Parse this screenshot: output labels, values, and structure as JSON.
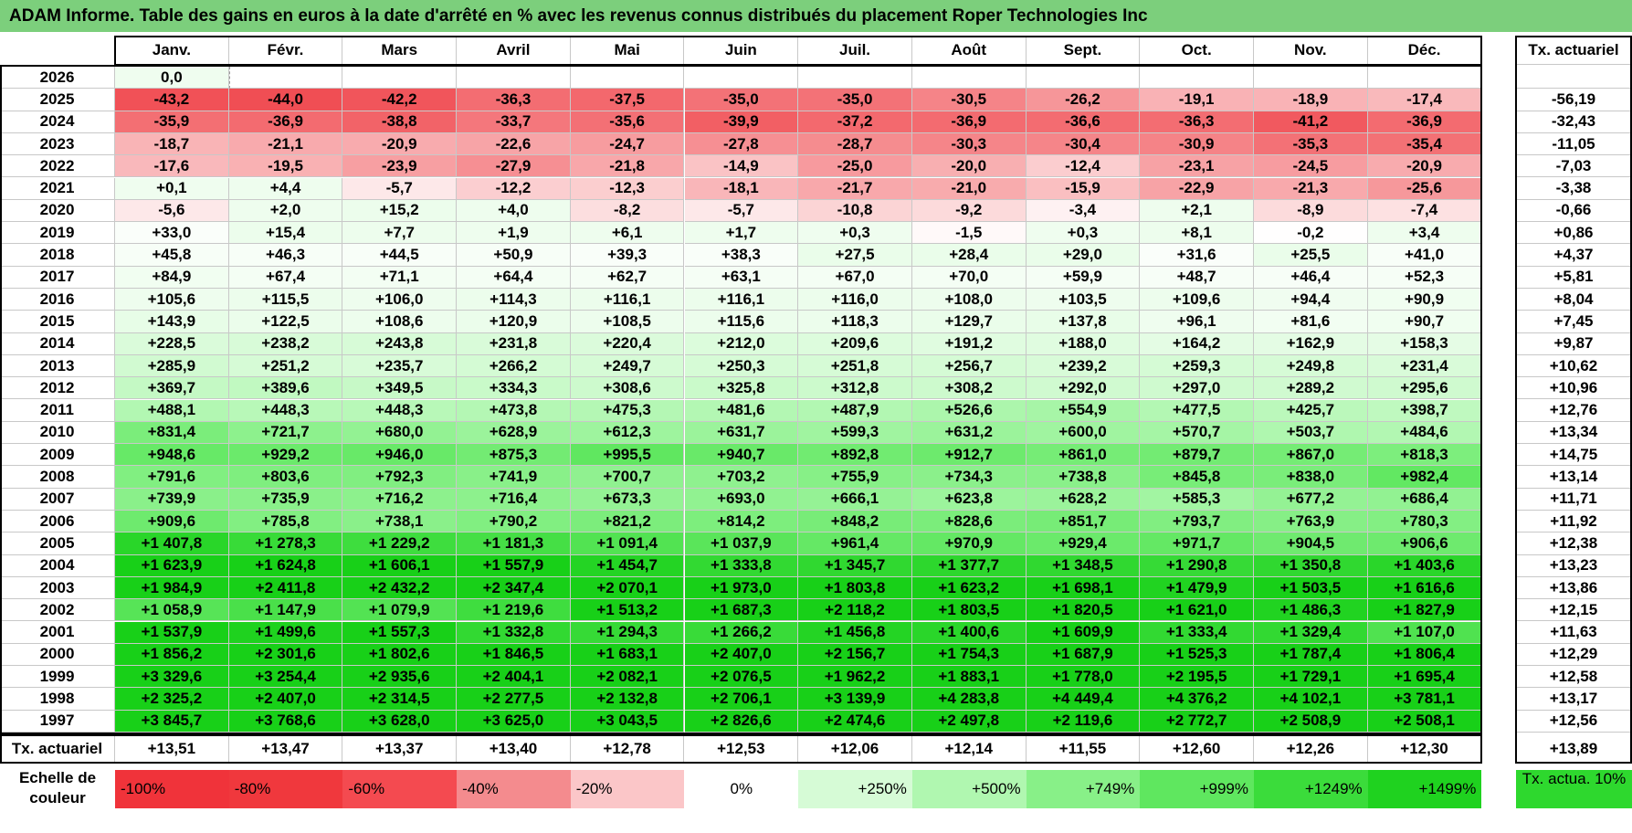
{
  "title": "ADAM Informe. Table des gains en euros à la date d'arrêté en % avec les revenus connus distribués du placement Roper Technologies Inc",
  "chart_data": {
    "type": "table",
    "columns": [
      "Janv.",
      "Févr.",
      "Mars",
      "Avril",
      "Mai",
      "Juin",
      "Juil.",
      "Août",
      "Sept.",
      "Oct.",
      "Nov.",
      "Déc."
    ],
    "rate_header": "Tx. actuariel",
    "rows": [
      {
        "year": "2026",
        "values": [
          "0,0",
          "",
          "",
          "",
          "",
          "",
          "",
          "",
          "",
          "",
          "",
          ""
        ],
        "rate": ""
      },
      {
        "year": "2025",
        "values": [
          "-43,2",
          "-44,0",
          "-42,2",
          "-36,3",
          "-37,5",
          "-35,0",
          "-35,0",
          "-30,5",
          "-26,2",
          "-19,1",
          "-18,9",
          "-17,4"
        ],
        "rate": "-56,19"
      },
      {
        "year": "2024",
        "values": [
          "-35,9",
          "-36,9",
          "-38,8",
          "-33,7",
          "-35,6",
          "-39,9",
          "-37,2",
          "-36,9",
          "-36,6",
          "-36,3",
          "-41,2",
          "-36,9"
        ],
        "rate": "-32,43"
      },
      {
        "year": "2023",
        "values": [
          "-18,7",
          "-21,1",
          "-20,9",
          "-22,6",
          "-24,7",
          "-27,8",
          "-28,7",
          "-30,3",
          "-30,4",
          "-30,9",
          "-35,3",
          "-35,4"
        ],
        "rate": "-11,05"
      },
      {
        "year": "2022",
        "values": [
          "-17,6",
          "-19,5",
          "-23,9",
          "-27,9",
          "-21,8",
          "-14,9",
          "-25,0",
          "-20,0",
          "-12,4",
          "-23,1",
          "-24,5",
          "-20,9"
        ],
        "rate": "-7,03"
      },
      {
        "year": "2021",
        "values": [
          "+0,1",
          "+4,4",
          "-5,7",
          "-12,2",
          "-12,3",
          "-18,1",
          "-21,7",
          "-21,0",
          "-15,9",
          "-22,9",
          "-21,3",
          "-25,6"
        ],
        "rate": "-3,38"
      },
      {
        "year": "2020",
        "values": [
          "-5,6",
          "+2,0",
          "+15,2",
          "+4,0",
          "-8,2",
          "-5,7",
          "-10,8",
          "-9,2",
          "-3,4",
          "+2,1",
          "-8,9",
          "-7,4"
        ],
        "rate": "-0,66"
      },
      {
        "year": "2019",
        "values": [
          "+33,0",
          "+15,4",
          "+7,7",
          "+1,9",
          "+6,1",
          "+1,7",
          "+0,3",
          "-1,5",
          "+0,3",
          "+8,1",
          "-0,2",
          "+3,4"
        ],
        "rate": "+0,86"
      },
      {
        "year": "2018",
        "values": [
          "+45,8",
          "+46,3",
          "+44,5",
          "+50,9",
          "+39,3",
          "+38,3",
          "+27,5",
          "+28,4",
          "+29,0",
          "+31,6",
          "+25,5",
          "+41,0"
        ],
        "rate": "+4,37"
      },
      {
        "year": "2017",
        "values": [
          "+84,9",
          "+67,4",
          "+71,1",
          "+64,4",
          "+62,7",
          "+63,1",
          "+67,0",
          "+70,0",
          "+59,9",
          "+48,7",
          "+46,4",
          "+52,3"
        ],
        "rate": "+5,81"
      },
      {
        "year": "2016",
        "values": [
          "+105,6",
          "+115,5",
          "+106,0",
          "+114,3",
          "+116,1",
          "+116,1",
          "+116,0",
          "+108,0",
          "+103,5",
          "+109,6",
          "+94,4",
          "+90,9"
        ],
        "rate": "+8,04"
      },
      {
        "year": "2015",
        "values": [
          "+143,9",
          "+122,5",
          "+108,6",
          "+120,9",
          "+108,5",
          "+115,6",
          "+118,3",
          "+129,7",
          "+137,8",
          "+96,1",
          "+81,6",
          "+90,7"
        ],
        "rate": "+7,45"
      },
      {
        "year": "2014",
        "values": [
          "+228,5",
          "+238,2",
          "+243,8",
          "+231,8",
          "+220,4",
          "+212,0",
          "+209,6",
          "+191,2",
          "+188,0",
          "+164,2",
          "+162,9",
          "+158,3"
        ],
        "rate": "+9,87"
      },
      {
        "year": "2013",
        "values": [
          "+285,9",
          "+251,2",
          "+235,7",
          "+266,2",
          "+249,7",
          "+250,3",
          "+251,8",
          "+256,7",
          "+239,2",
          "+259,3",
          "+249,8",
          "+231,4"
        ],
        "rate": "+10,62"
      },
      {
        "year": "2012",
        "values": [
          "+369,7",
          "+389,6",
          "+349,5",
          "+334,3",
          "+308,6",
          "+325,8",
          "+312,8",
          "+308,2",
          "+292,0",
          "+297,0",
          "+289,2",
          "+295,6"
        ],
        "rate": "+10,96"
      },
      {
        "year": "2011",
        "values": [
          "+488,1",
          "+448,3",
          "+448,3",
          "+473,8",
          "+475,3",
          "+481,6",
          "+487,9",
          "+526,6",
          "+554,9",
          "+477,5",
          "+425,7",
          "+398,7"
        ],
        "rate": "+12,76"
      },
      {
        "year": "2010",
        "values": [
          "+831,4",
          "+721,7",
          "+680,0",
          "+628,9",
          "+612,3",
          "+631,7",
          "+599,3",
          "+631,2",
          "+600,0",
          "+570,7",
          "+503,7",
          "+484,6"
        ],
        "rate": "+13,34"
      },
      {
        "year": "2009",
        "values": [
          "+948,6",
          "+929,2",
          "+946,0",
          "+875,3",
          "+995,5",
          "+940,7",
          "+892,8",
          "+912,7",
          "+861,0",
          "+879,7",
          "+867,0",
          "+818,3"
        ],
        "rate": "+14,75"
      },
      {
        "year": "2008",
        "values": [
          "+791,6",
          "+803,6",
          "+792,3",
          "+741,9",
          "+700,7",
          "+703,2",
          "+755,9",
          "+734,3",
          "+738,8",
          "+845,8",
          "+838,0",
          "+982,4"
        ],
        "rate": "+13,14"
      },
      {
        "year": "2007",
        "values": [
          "+739,9",
          "+735,9",
          "+716,2",
          "+716,4",
          "+673,3",
          "+693,0",
          "+666,1",
          "+623,8",
          "+628,2",
          "+585,3",
          "+677,2",
          "+686,4"
        ],
        "rate": "+11,71"
      },
      {
        "year": "2006",
        "values": [
          "+909,6",
          "+785,8",
          "+738,1",
          "+790,2",
          "+821,2",
          "+814,2",
          "+848,2",
          "+828,6",
          "+851,7",
          "+793,7",
          "+763,9",
          "+780,3"
        ],
        "rate": "+11,92"
      },
      {
        "year": "2005",
        "values": [
          "+1 407,8",
          "+1 278,3",
          "+1 229,2",
          "+1 181,3",
          "+1 091,4",
          "+1 037,9",
          "+961,4",
          "+970,9",
          "+929,4",
          "+971,7",
          "+904,5",
          "+906,6"
        ],
        "rate": "+12,38"
      },
      {
        "year": "2004",
        "values": [
          "+1 623,9",
          "+1 624,8",
          "+1 606,1",
          "+1 557,9",
          "+1 454,7",
          "+1 333,8",
          "+1 345,7",
          "+1 377,7",
          "+1 348,5",
          "+1 290,8",
          "+1 350,8",
          "+1 403,6"
        ],
        "rate": "+13,23"
      },
      {
        "year": "2003",
        "values": [
          "+1 984,9",
          "+2 411,8",
          "+2 432,2",
          "+2 347,4",
          "+2 070,1",
          "+1 973,0",
          "+1 803,8",
          "+1 623,2",
          "+1 698,1",
          "+1 479,9",
          "+1 503,5",
          "+1 616,6"
        ],
        "rate": "+13,86"
      },
      {
        "year": "2002",
        "values": [
          "+1 058,9",
          "+1 147,9",
          "+1 079,9",
          "+1 219,6",
          "+1 513,2",
          "+1 687,3",
          "+2 118,2",
          "+1 803,5",
          "+1 820,5",
          "+1 621,0",
          "+1 486,3",
          "+1 827,9"
        ],
        "rate": "+12,15"
      },
      {
        "year": "2001",
        "values": [
          "+1 537,9",
          "+1 499,6",
          "+1 557,3",
          "+1 332,8",
          "+1 294,3",
          "+1 266,2",
          "+1 456,8",
          "+1 400,6",
          "+1 609,9",
          "+1 333,4",
          "+1 329,4",
          "+1 107,0"
        ],
        "rate": "+11,63"
      },
      {
        "year": "2000",
        "values": [
          "+1 856,2",
          "+2 301,6",
          "+1 802,6",
          "+1 846,5",
          "+1 683,1",
          "+2 407,0",
          "+2 156,7",
          "+1 754,3",
          "+1 687,9",
          "+1 525,3",
          "+1 787,4",
          "+1 806,4"
        ],
        "rate": "+12,29"
      },
      {
        "year": "1999",
        "values": [
          "+3 329,6",
          "+3 254,4",
          "+2 935,6",
          "+2 404,1",
          "+2 082,1",
          "+2 076,5",
          "+1 962,2",
          "+1 883,1",
          "+1 778,0",
          "+2 195,5",
          "+1 729,1",
          "+1 695,4"
        ],
        "rate": "+12,58"
      },
      {
        "year": "1998",
        "values": [
          "+2 325,2",
          "+2 407,0",
          "+2 314,5",
          "+2 277,5",
          "+2 132,8",
          "+2 706,1",
          "+3 139,9",
          "+4 283,8",
          "+4 449,4",
          "+4 376,2",
          "+4 102,1",
          "+3 781,1"
        ],
        "rate": "+13,17"
      },
      {
        "year": "1997",
        "values": [
          "+3 845,7",
          "+3 768,6",
          "+3 628,0",
          "+3 625,0",
          "+3 043,5",
          "+2 826,6",
          "+2 474,6",
          "+2 497,8",
          "+2 119,6",
          "+2 772,7",
          "+2 508,9",
          "+2 508,1"
        ],
        "rate": "+12,56"
      }
    ],
    "footer": {
      "label": "Tx. actuariel",
      "values": [
        "+13,51",
        "+13,47",
        "+13,37",
        "+13,40",
        "+12,78",
        "+12,53",
        "+12,06",
        "+12,14",
        "+11,55",
        "+12,60",
        "+12,26",
        "+12,30"
      ],
      "rate": "+13,89"
    }
  },
  "legend": {
    "label": "Echelle de couleur",
    "items": [
      {
        "text": "-100%",
        "color": "#f0333a"
      },
      {
        "text": "-80%",
        "color": "#f0383d"
      },
      {
        "text": "-60%",
        "color": "#f44a50"
      },
      {
        "text": "-40%",
        "color": "#f48b8e"
      },
      {
        "text": "-20%",
        "color": "#fbc6c8"
      },
      {
        "text": "0%",
        "color": "#ffffff"
      },
      {
        "text": "+250%",
        "color": "#d6fbd6"
      },
      {
        "text": "+500%",
        "color": "#b0f7b0"
      },
      {
        "text": "+749%",
        "color": "#88f088"
      },
      {
        "text": "+999%",
        "color": "#5fe75f"
      },
      {
        "text": "+1249%",
        "color": "#3bdc3b"
      },
      {
        "text": "+1499%",
        "color": "#1fd21f"
      }
    ],
    "rate_label": "Tx. actua. 10%",
    "rate_color": "#2ed82e"
  }
}
